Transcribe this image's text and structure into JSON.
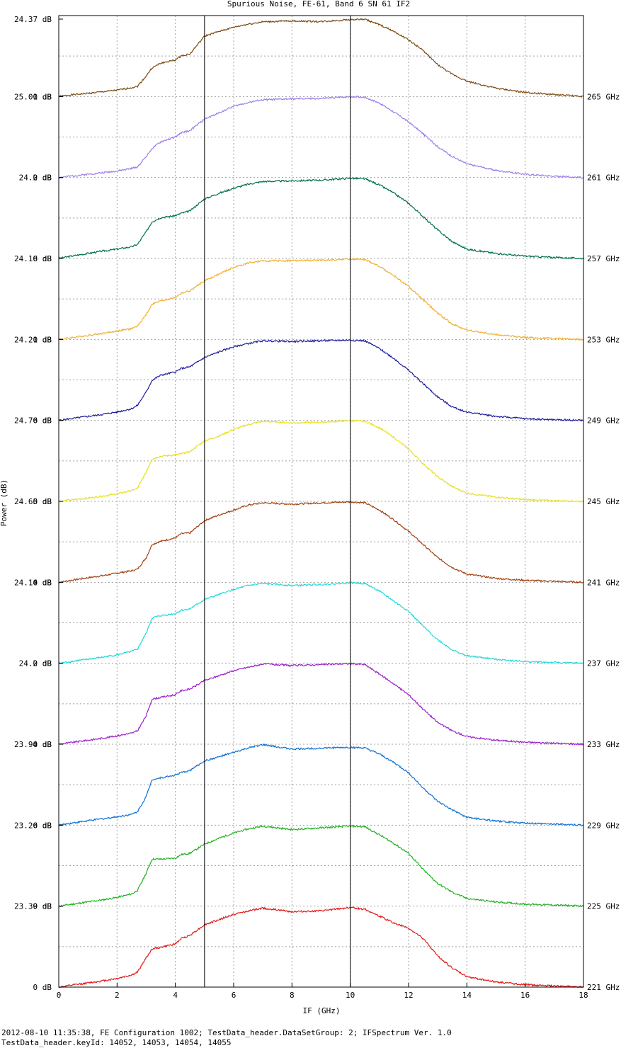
{
  "footer": {
    "line1": "2012-08-10 11:35:38, FE Configuration 1002; TestData_header.DataSetGroup: 2; IFSpectrum Ver. 1.0",
    "line2": "TestData_header.keyId: 14052, 14053, 14054, 14055"
  },
  "chart_data": {
    "type": "line",
    "title": "Spurious Noise, FE-61, Band 6 SN 61 IF2",
    "xlabel": "IF (GHz)",
    "ylabel": "Power (dB)",
    "xlim": [
      0,
      18
    ],
    "x_ticks": [
      "0",
      "2",
      "4",
      "6",
      "8",
      "10",
      "12",
      "14",
      "16",
      "18"
    ],
    "grid": true,
    "vertical_markers": [
      5,
      10
    ],
    "x": [
      0,
      0.5,
      1,
      1.5,
      2,
      2.5,
      2.7,
      3.0,
      3.2,
      3.5,
      4.0,
      4.2,
      4.5,
      5.0,
      5.5,
      6.0,
      6.5,
      7.0,
      8.0,
      9.0,
      10.0,
      10.5,
      11.0,
      11.5,
      12.0,
      12.5,
      13.0,
      13.5,
      14.0,
      15.0,
      16.0,
      17.0,
      18.0
    ],
    "series": [
      {
        "name": "265 GHz",
        "color": "#7a4a10",
        "top_label": "24.37 dB",
        "zero_label": "0 dB",
        "values": [
          0.0,
          0.6,
          1.0,
          1.5,
          2.0,
          2.8,
          3.2,
          6.5,
          9.0,
          10.5,
          11.5,
          12.8,
          13.4,
          19.0,
          20.5,
          21.8,
          22.8,
          23.5,
          23.8,
          23.6,
          24.2,
          24.3,
          22.6,
          20.5,
          17.8,
          14.5,
          10.0,
          7.0,
          4.8,
          2.6,
          1.3,
          0.6,
          0.0
        ]
      },
      {
        "name": "261 GHz",
        "color": "#9b7de6",
        "top_label": "25.01 dB",
        "zero_label": "0 dB",
        "values": [
          0.0,
          0.5,
          1.0,
          1.5,
          2.0,
          2.8,
          3.3,
          6.5,
          9.0,
          11.0,
          12.5,
          13.8,
          14.5,
          18.0,
          20.0,
          22.0,
          23.2,
          24.0,
          24.3,
          24.4,
          25.0,
          24.8,
          23.0,
          20.2,
          17.2,
          13.5,
          9.5,
          6.5,
          4.2,
          2.2,
          1.0,
          0.4,
          0.0
        ]
      },
      {
        "name": "257 GHz",
        "color": "#00704a",
        "top_label": "24.2 dB",
        "zero_label": "0 dB",
        "values": [
          0.0,
          0.8,
          1.5,
          2.2,
          2.8,
          3.5,
          4.2,
          8.0,
          11.0,
          12.2,
          12.8,
          13.5,
          14.2,
          17.8,
          19.5,
          21.0,
          22.2,
          23.0,
          23.2,
          23.4,
          24.0,
          23.8,
          22.0,
          19.5,
          16.5,
          12.5,
          8.5,
          5.0,
          2.8,
          1.5,
          0.7,
          0.3,
          0.0
        ]
      },
      {
        "name": "253 GHz",
        "color": "#f0b030",
        "top_label": "24.16 dB",
        "zero_label": "0 dB",
        "values": [
          0.0,
          0.6,
          1.2,
          1.8,
          2.5,
          3.2,
          4.0,
          7.5,
          10.5,
          11.5,
          12.5,
          13.8,
          14.5,
          17.5,
          19.5,
          21.5,
          22.8,
          23.4,
          23.5,
          23.6,
          24.0,
          23.8,
          21.8,
          19.0,
          15.8,
          11.8,
          7.8,
          4.6,
          2.8,
          1.4,
          0.6,
          0.3,
          0.0
        ]
      },
      {
        "name": "249 GHz",
        "color": "#1a1a9a",
        "top_label": "24.21 dB",
        "zero_label": "0 dB",
        "values": [
          0.0,
          0.6,
          1.2,
          1.8,
          2.5,
          3.5,
          4.5,
          8.5,
          12.0,
          13.5,
          14.5,
          15.5,
          16.0,
          18.8,
          20.5,
          22.0,
          23.0,
          23.8,
          23.6,
          23.8,
          24.0,
          23.8,
          21.5,
          18.5,
          15.0,
          11.0,
          7.0,
          4.0,
          2.5,
          1.2,
          0.5,
          0.2,
          0.0
        ]
      },
      {
        "name": "245 GHz",
        "color": "#e8e020",
        "top_label": "24.76 dB",
        "zero_label": "0 dB",
        "values": [
          0.0,
          0.5,
          1.0,
          1.6,
          2.3,
          3.3,
          4.0,
          9.0,
          13.0,
          13.8,
          14.2,
          14.5,
          15.2,
          18.5,
          20.0,
          22.0,
          23.5,
          24.5,
          24.0,
          24.2,
          24.7,
          24.5,
          22.5,
          19.5,
          16.0,
          11.5,
          7.5,
          4.5,
          2.5,
          1.3,
          0.5,
          0.2,
          0.0
        ]
      },
      {
        "name": "241 GHz",
        "color": "#a04010",
        "top_label": "24.65 dB",
        "zero_label": "0 dB",
        "values": [
          0.0,
          0.7,
          1.4,
          2.0,
          2.8,
          3.5,
          4.0,
          7.5,
          11.5,
          12.5,
          13.5,
          14.8,
          15.0,
          18.8,
          20.5,
          22.0,
          23.5,
          24.2,
          23.8,
          24.2,
          24.5,
          24.2,
          22.0,
          19.0,
          15.5,
          11.5,
          7.5,
          4.5,
          2.5,
          1.2,
          0.6,
          0.3,
          0.0
        ]
      },
      {
        "name": "237 GHz",
        "color": "#20d8d8",
        "top_label": "24.14 dB",
        "zero_label": "0 dB",
        "values": [
          0.0,
          0.6,
          1.2,
          1.8,
          2.5,
          3.5,
          4.2,
          9.0,
          13.5,
          14.2,
          14.8,
          15.8,
          16.2,
          19.0,
          20.5,
          22.0,
          23.2,
          23.8,
          23.2,
          23.5,
          24.0,
          23.8,
          21.5,
          18.5,
          15.5,
          11.0,
          7.0,
          4.0,
          2.2,
          1.2,
          0.5,
          0.2,
          0.0
        ]
      },
      {
        "name": "233 GHz",
        "color": "#9a20c8",
        "top_label": "24.2 dB",
        "zero_label": "0 dB",
        "values": [
          0.0,
          0.6,
          1.2,
          1.8,
          2.5,
          3.3,
          4.0,
          8.5,
          13.5,
          14.0,
          14.8,
          16.0,
          16.5,
          19.0,
          20.5,
          22.0,
          23.0,
          24.0,
          23.5,
          23.8,
          24.1,
          23.8,
          21.0,
          18.0,
          14.8,
          10.5,
          6.5,
          4.0,
          2.3,
          1.2,
          0.6,
          0.3,
          0.0
        ]
      },
      {
        "name": "229 GHz",
        "color": "#1070d0",
        "top_label": "23.94 dB",
        "zero_label": "0 dB",
        "values": [
          0.0,
          0.7,
          1.3,
          1.9,
          2.5,
          3.2,
          4.0,
          8.5,
          13.5,
          14.0,
          14.8,
          15.5,
          16.2,
          19.0,
          20.2,
          21.5,
          22.8,
          23.8,
          22.5,
          22.8,
          23.0,
          22.8,
          21.0,
          18.5,
          15.5,
          11.0,
          7.0,
          4.5,
          2.3,
          1.2,
          0.6,
          0.3,
          0.0
        ]
      },
      {
        "name": "225 GHz",
        "color": "#20b020",
        "top_label": "23.26 dB",
        "zero_label": "0 dB",
        "values": [
          0.0,
          0.6,
          1.2,
          1.8,
          2.5,
          3.5,
          4.5,
          9.5,
          13.5,
          13.5,
          13.8,
          14.8,
          15.2,
          17.8,
          19.5,
          21.0,
          22.2,
          23.0,
          22.0,
          22.5,
          23.0,
          22.8,
          20.5,
          18.0,
          15.2,
          10.5,
          6.5,
          4.0,
          2.2,
          1.2,
          0.6,
          0.3,
          0.0
        ]
      },
      {
        "name": "221 GHz",
        "color": "#e01818",
        "top_label": "23.39 dB",
        "zero_label": "0 dB",
        "values": [
          0.0,
          0.6,
          1.2,
          1.8,
          2.5,
          3.5,
          4.3,
          8.5,
          11.0,
          11.5,
          12.5,
          14.0,
          15.0,
          18.0,
          19.5,
          21.0,
          22.0,
          22.8,
          21.8,
          22.0,
          23.0,
          22.5,
          20.5,
          18.5,
          17.0,
          14.0,
          9.0,
          5.5,
          3.0,
          1.5,
          0.7,
          0.3,
          0.0
        ]
      }
    ]
  }
}
